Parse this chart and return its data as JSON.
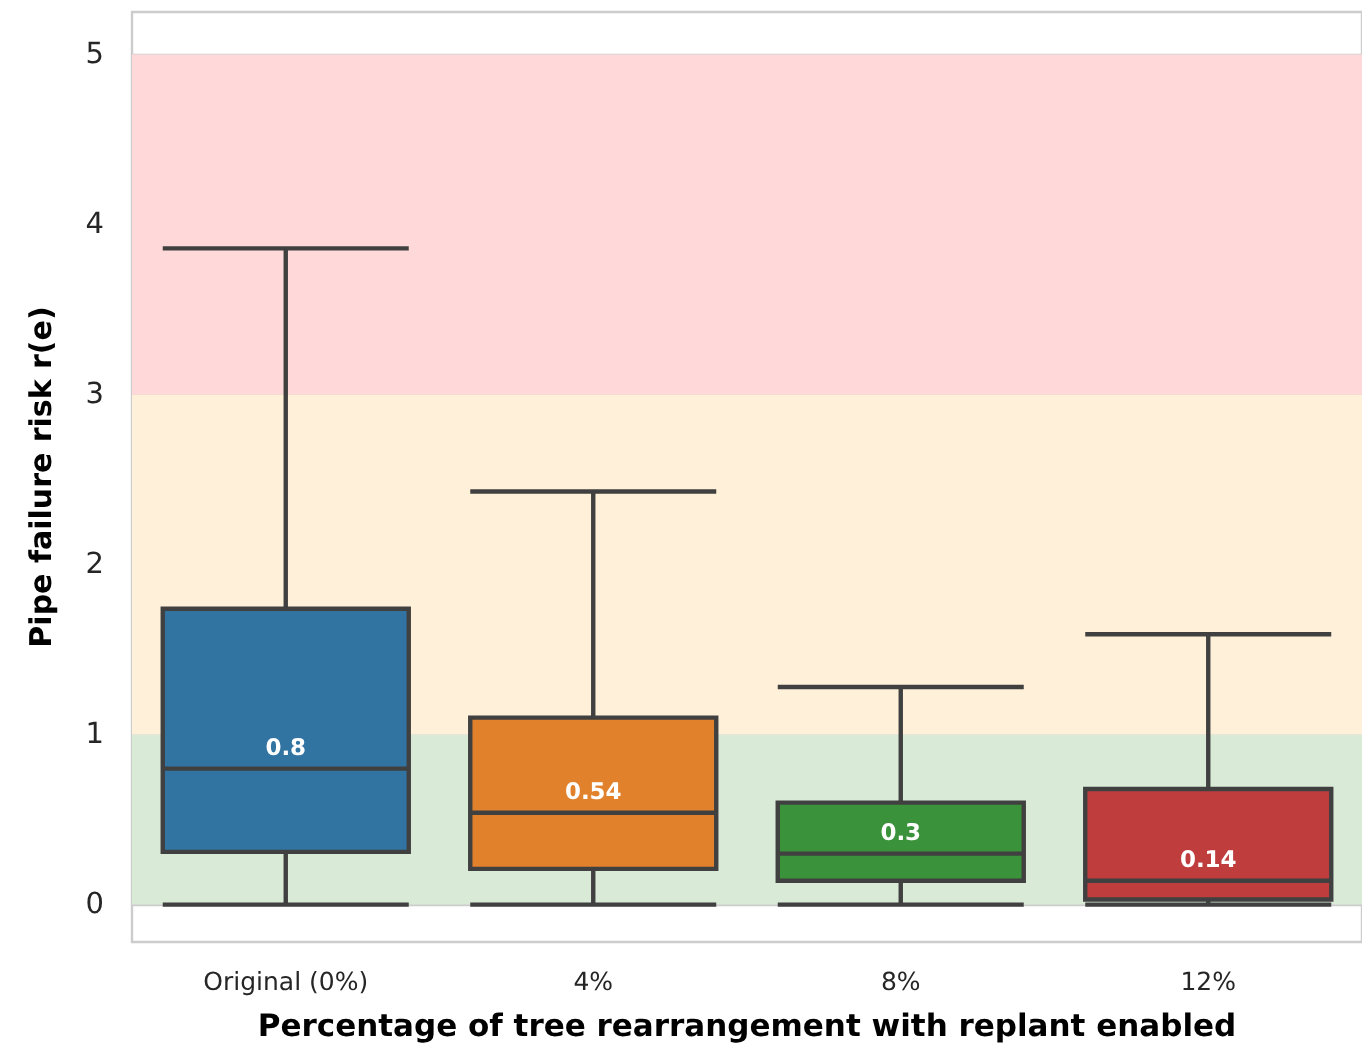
{
  "chart_data": {
    "type": "box",
    "xlabel": "Percentage of tree rearrangement with replant enabled",
    "ylabel": "Pipe failure risk r(e)",
    "categories": [
      "Original (0%)",
      "4%",
      "8%",
      "12%"
    ],
    "boxes": [
      {
        "low": 0,
        "q1": 0.31,
        "median": 0.8,
        "q3": 1.74,
        "high": 3.86
      },
      {
        "low": 0,
        "q1": 0.21,
        "median": 0.54,
        "q3": 1.1,
        "high": 2.43
      },
      {
        "low": 0,
        "q1": 0.14,
        "median": 0.3,
        "q3": 0.6,
        "high": 1.28
      },
      {
        "low": 0,
        "q1": 0.03,
        "median": 0.14,
        "q3": 0.68,
        "high": 1.59
      }
    ],
    "value_labels": [
      "0.8",
      "0.54",
      "0.3",
      "0.14"
    ],
    "colors": [
      "#3274a1",
      "#e1812c",
      "#3a923a",
      "#c03d3e"
    ],
    "ylim": [
      -0.22,
      5.25
    ],
    "yticks": [
      0,
      1,
      2,
      3,
      4,
      5
    ],
    "grid": "y",
    "bands": [
      {
        "axis": "y",
        "from": 0,
        "to": 1,
        "color": "#d9ead7"
      },
      {
        "axis": "y",
        "from": 1,
        "to": 3,
        "color": "#fff0d9"
      },
      {
        "axis": "y",
        "from": 3,
        "to": 5,
        "color": "#ffd9d9"
      }
    ]
  }
}
